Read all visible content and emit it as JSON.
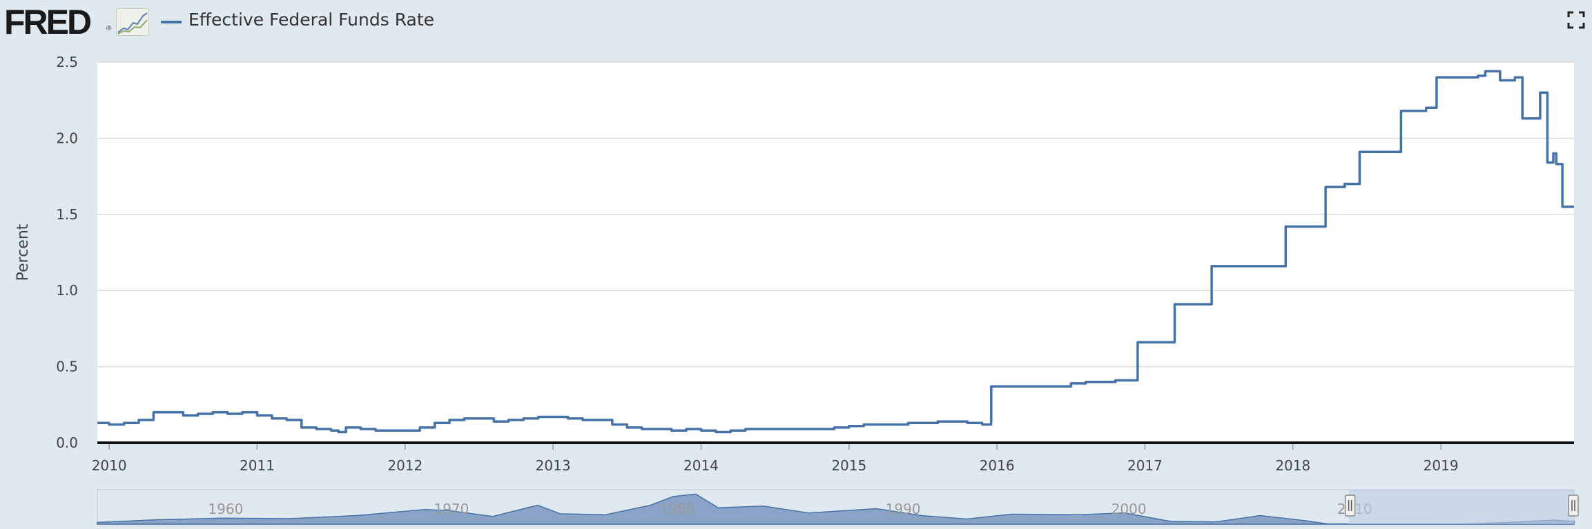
{
  "header": {
    "logo_text": "FRED",
    "logo_reg": "®",
    "legend_label": "Effective Federal Funds Rate"
  },
  "colors": {
    "background": "#e1e9f0",
    "plot_background": "#ffffff",
    "series": "#4572a7",
    "navigator_fill": "#8aa4c7",
    "navigator_mask": "#bdcde6"
  },
  "icons": {
    "fullscreen": "fullscreen-icon",
    "logo_graph": "logo-graph-icon"
  },
  "chart_data": {
    "type": "line",
    "title": "",
    "xlabel": "",
    "ylabel": "Percent",
    "xlim": [
      2009.92,
      2019.9
    ],
    "ylim": [
      0,
      2.5
    ],
    "grid": true,
    "legend": "top-left",
    "x_ticks": [
      "2010",
      "2011",
      "2012",
      "2013",
      "2014",
      "2015",
      "2016",
      "2017",
      "2018",
      "2019"
    ],
    "y_ticks": [
      "0.0",
      "0.5",
      "1.0",
      "1.5",
      "2.0",
      "2.5"
    ],
    "series": [
      {
        "name": "Effective Federal Funds Rate",
        "x": [
          2009.92,
          2010.0,
          2010.1,
          2010.2,
          2010.3,
          2010.4,
          2010.5,
          2010.6,
          2010.7,
          2010.8,
          2010.9,
          2011.0,
          2011.1,
          2011.2,
          2011.3,
          2011.4,
          2011.5,
          2011.55,
          2011.6,
          2011.7,
          2011.8,
          2011.9,
          2012.0,
          2012.1,
          2012.2,
          2012.3,
          2012.4,
          2012.5,
          2012.6,
          2012.7,
          2012.8,
          2012.9,
          2013.0,
          2013.1,
          2013.2,
          2013.3,
          2013.4,
          2013.5,
          2013.6,
          2013.7,
          2013.8,
          2013.9,
          2014.0,
          2014.1,
          2014.2,
          2014.3,
          2014.4,
          2014.5,
          2014.6,
          2014.7,
          2014.8,
          2014.9,
          2015.0,
          2015.1,
          2015.2,
          2015.3,
          2015.4,
          2015.5,
          2015.6,
          2015.7,
          2015.8,
          2015.9,
          2015.96,
          2015.961,
          2016.1,
          2016.2,
          2016.3,
          2016.4,
          2016.5,
          2016.6,
          2016.7,
          2016.8,
          2016.95,
          2016.951,
          2017.1,
          2017.2,
          2017.201,
          2017.3,
          2017.45,
          2017.451,
          2017.6,
          2017.7,
          2017.8,
          2017.95,
          2017.951,
          2018.1,
          2018.2,
          2018.22,
          2018.221,
          2018.35,
          2018.45,
          2018.451,
          2018.6,
          2018.73,
          2018.731,
          2018.9,
          2018.97,
          2018.971,
          2019.1,
          2019.2,
          2019.25,
          2019.3,
          2019.4,
          2019.5,
          2019.55,
          2019.551,
          2019.65,
          2019.67,
          2019.671,
          2019.72,
          2019.75,
          2019.76,
          2019.78,
          2019.8,
          2019.82,
          2019.821,
          2019.9
        ],
        "y": [
          0.13,
          0.12,
          0.13,
          0.15,
          0.2,
          0.2,
          0.18,
          0.19,
          0.2,
          0.19,
          0.2,
          0.18,
          0.16,
          0.15,
          0.1,
          0.09,
          0.08,
          0.07,
          0.1,
          0.09,
          0.08,
          0.08,
          0.08,
          0.1,
          0.13,
          0.15,
          0.16,
          0.16,
          0.14,
          0.15,
          0.16,
          0.17,
          0.17,
          0.16,
          0.15,
          0.15,
          0.12,
          0.1,
          0.09,
          0.09,
          0.08,
          0.09,
          0.08,
          0.07,
          0.08,
          0.09,
          0.09,
          0.09,
          0.09,
          0.09,
          0.09,
          0.1,
          0.11,
          0.12,
          0.12,
          0.12,
          0.13,
          0.13,
          0.14,
          0.14,
          0.13,
          0.12,
          0.13,
          0.37,
          0.37,
          0.37,
          0.37,
          0.37,
          0.39,
          0.4,
          0.4,
          0.41,
          0.41,
          0.66,
          0.66,
          0.66,
          0.91,
          0.91,
          0.91,
          1.16,
          1.16,
          1.16,
          1.16,
          1.16,
          1.42,
          1.42,
          1.42,
          1.42,
          1.68,
          1.7,
          1.7,
          1.91,
          1.91,
          1.91,
          2.18,
          2.2,
          2.2,
          2.4,
          2.4,
          2.4,
          2.41,
          2.44,
          2.38,
          2.4,
          2.4,
          2.13,
          2.13,
          2.13,
          2.3,
          1.84,
          1.84,
          1.9,
          1.83,
          1.83,
          1.83,
          1.55,
          1.55
        ]
      }
    ]
  },
  "navigator": {
    "decade_labels": [
      "1960",
      "1970",
      "1980",
      "1990",
      "2000",
      "2010"
    ],
    "x_range": [
      1954.5,
      2019.9
    ],
    "selected_range": [
      2009.92,
      2019.9
    ],
    "x": [
      1954.5,
      1957,
      1960,
      1963,
      1966,
      1969,
      1970,
      1972,
      1974,
      1975,
      1977,
      1979,
      1980,
      1981,
      1982,
      1984,
      1986,
      1989,
      1991,
      1993,
      1995,
      1998,
      2000,
      2002,
      2004,
      2006,
      2008,
      2009,
      2015,
      2017,
      2019,
      2019.9
    ],
    "y": [
      1.0,
      2.5,
      3.5,
      3.2,
      5.0,
      8.5,
      8.0,
      4.5,
      11.0,
      6.0,
      5.5,
      11.0,
      16.0,
      17.5,
      9.5,
      10.5,
      6.5,
      9.0,
      5.0,
      3.0,
      5.8,
      5.5,
      6.5,
      1.7,
      1.3,
      5.0,
      2.0,
      0.15,
      0.13,
      1.0,
      2.4,
      1.55
    ]
  }
}
